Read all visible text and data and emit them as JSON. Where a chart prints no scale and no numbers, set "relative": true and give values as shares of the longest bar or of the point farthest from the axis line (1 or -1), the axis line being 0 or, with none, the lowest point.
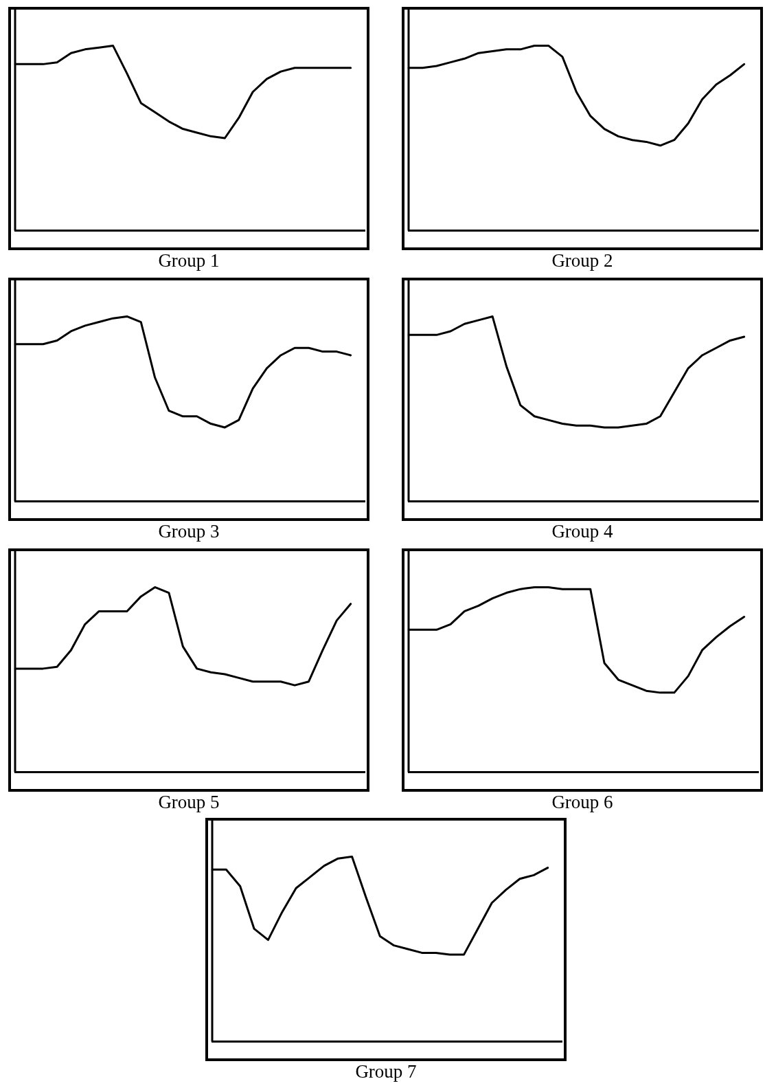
{
  "chart_data": [
    {
      "type": "line",
      "relative": true,
      "xlabel": "Group 1",
      "grid": false,
      "legend": false,
      "marker": "none",
      "categories": [
        null,
        null,
        null,
        null,
        null,
        null,
        null,
        null,
        null,
        null,
        null,
        null,
        null,
        null,
        null,
        null,
        null,
        null,
        null,
        null,
        null,
        null,
        null,
        null,
        null,
        null
      ],
      "series": [
        {
          "color": "#000000",
          "values": [
            0.9,
            0.9,
            0.9,
            0.91,
            0.96,
            0.98,
            0.99,
            1,
            0.85,
            0.69,
            0.64,
            0.59,
            0.55,
            0.53,
            0.51,
            0.5,
            0.61,
            0.75,
            0.82,
            0.86,
            0.88,
            0.88,
            0.88,
            0.88,
            0.88,
            null
          ]
        }
      ]
    },
    {
      "type": "line",
      "relative": true,
      "xlabel": "Group 2",
      "grid": false,
      "legend": false,
      "marker": "none",
      "categories": [
        null,
        null,
        null,
        null,
        null,
        null,
        null,
        null,
        null,
        null,
        null,
        null,
        null,
        null,
        null,
        null,
        null,
        null,
        null,
        null,
        null,
        null,
        null,
        null,
        null,
        null
      ],
      "series": [
        {
          "color": "#000000",
          "values": [
            0.88,
            0.88,
            0.89,
            0.91,
            0.93,
            0.96,
            0.97,
            0.98,
            0.98,
            1,
            1,
            0.94,
            0.75,
            0.62,
            0.55,
            0.51,
            0.49,
            0.48,
            0.46,
            0.49,
            0.58,
            0.71,
            0.79,
            0.84,
            0.9,
            null
          ]
        }
      ]
    },
    {
      "type": "line",
      "relative": true,
      "xlabel": "Group 3",
      "grid": false,
      "legend": false,
      "marker": "none",
      "categories": [
        null,
        null,
        null,
        null,
        null,
        null,
        null,
        null,
        null,
        null,
        null,
        null,
        null,
        null,
        null,
        null,
        null,
        null,
        null,
        null,
        null,
        null,
        null,
        null,
        null,
        null
      ],
      "series": [
        {
          "color": "#000000",
          "values": [
            0.85,
            0.85,
            0.85,
            0.87,
            0.92,
            0.95,
            0.97,
            0.99,
            1,
            0.97,
            0.67,
            0.49,
            0.46,
            0.46,
            0.42,
            0.4,
            0.44,
            0.61,
            0.72,
            0.79,
            0.83,
            0.83,
            0.81,
            0.81,
            0.79,
            null
          ]
        }
      ]
    },
    {
      "type": "line",
      "relative": true,
      "xlabel": "Group 4",
      "grid": false,
      "legend": false,
      "marker": "none",
      "categories": [
        null,
        null,
        null,
        null,
        null,
        null,
        null,
        null,
        null,
        null,
        null,
        null,
        null,
        null,
        null,
        null,
        null,
        null,
        null,
        null,
        null,
        null,
        null,
        null,
        null,
        null
      ],
      "series": [
        {
          "color": "#000000",
          "values": [
            0.9,
            0.9,
            0.9,
            0.92,
            0.96,
            0.98,
            1,
            0.73,
            0.52,
            0.46,
            0.44,
            0.42,
            0.41,
            0.41,
            0.4,
            0.4,
            0.41,
            0.42,
            0.46,
            0.59,
            0.72,
            0.79,
            0.83,
            0.87,
            0.89,
            null
          ]
        }
      ]
    },
    {
      "type": "line",
      "relative": true,
      "xlabel": "Group 5",
      "grid": false,
      "legend": false,
      "marker": "none",
      "categories": [
        null,
        null,
        null,
        null,
        null,
        null,
        null,
        null,
        null,
        null,
        null,
        null,
        null,
        null,
        null,
        null,
        null,
        null,
        null,
        null,
        null,
        null,
        null,
        null,
        null,
        null
      ],
      "series": [
        {
          "color": "#000000",
          "values": [
            0.56,
            0.56,
            0.56,
            0.57,
            0.66,
            0.8,
            0.87,
            0.87,
            0.87,
            0.95,
            1,
            0.97,
            0.68,
            0.56,
            0.54,
            0.53,
            0.51,
            0.49,
            0.49,
            0.49,
            0.47,
            0.49,
            0.66,
            0.82,
            0.91,
            null
          ]
        }
      ]
    },
    {
      "type": "line",
      "relative": true,
      "xlabel": "Group 6",
      "grid": false,
      "legend": false,
      "marker": "none",
      "categories": [
        null,
        null,
        null,
        null,
        null,
        null,
        null,
        null,
        null,
        null,
        null,
        null,
        null,
        null,
        null,
        null,
        null,
        null,
        null,
        null,
        null,
        null,
        null,
        null,
        null,
        null
      ],
      "series": [
        {
          "color": "#000000",
          "values": [
            0.77,
            0.77,
            0.77,
            0.8,
            0.87,
            0.9,
            0.94,
            0.97,
            0.99,
            1,
            1,
            0.99,
            0.99,
            0.99,
            0.59,
            0.5,
            0.47,
            0.44,
            0.43,
            0.43,
            0.52,
            0.66,
            0.73,
            0.79,
            0.84,
            null
          ]
        }
      ]
    },
    {
      "type": "line",
      "relative": true,
      "xlabel": "Group 7",
      "grid": false,
      "legend": false,
      "marker": "none",
      "categories": [
        null,
        null,
        null,
        null,
        null,
        null,
        null,
        null,
        null,
        null,
        null,
        null,
        null,
        null,
        null,
        null,
        null,
        null,
        null,
        null,
        null,
        null,
        null,
        null,
        null,
        null
      ],
      "series": [
        {
          "color": "#000000",
          "values": [
            0.93,
            0.93,
            0.84,
            0.61,
            0.55,
            0.7,
            0.83,
            0.89,
            0.95,
            0.99,
            1,
            0.78,
            0.57,
            0.52,
            0.5,
            0.48,
            0.48,
            0.47,
            0.47,
            0.61,
            0.75,
            0.82,
            0.88,
            0.9,
            0.94,
            null
          ]
        }
      ]
    }
  ]
}
